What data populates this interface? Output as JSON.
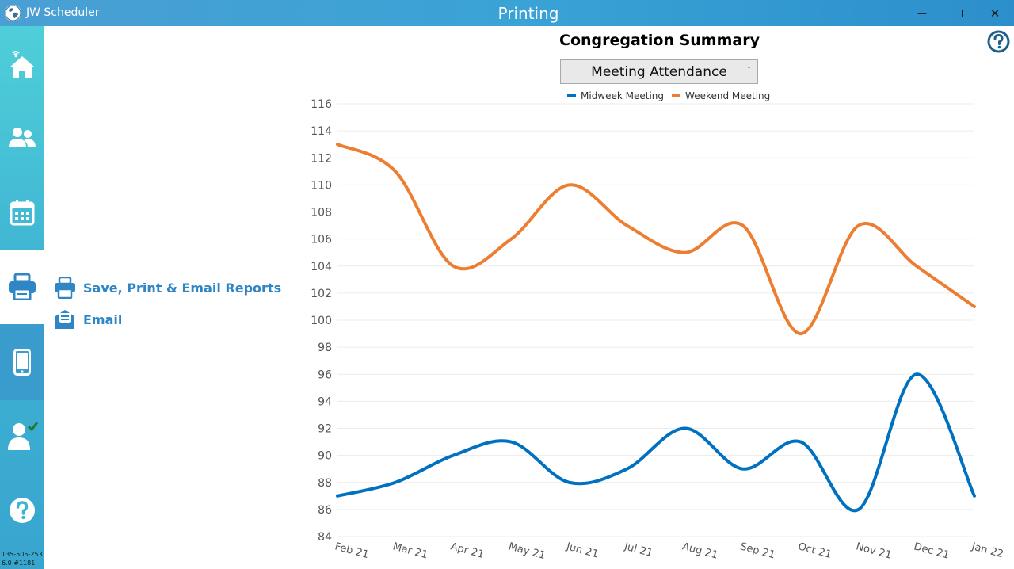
{
  "window": {
    "app_name": "JW Scheduler",
    "title": "Printing",
    "min_glyph": "—",
    "max_glyph": "☐",
    "close_glyph": "✕"
  },
  "sidebar": {
    "items": [
      {
        "name": "home",
        "icon": "home-wifi-icon"
      },
      {
        "name": "people",
        "icon": "people-icon"
      },
      {
        "name": "calendar",
        "icon": "calendar-icon"
      },
      {
        "name": "printing",
        "icon": "printer-icon",
        "active": true
      },
      {
        "name": "mobile",
        "icon": "phone-icon"
      },
      {
        "name": "user-check",
        "icon": "user-check-icon"
      },
      {
        "name": "help",
        "icon": "help-icon"
      }
    ],
    "version_line1": "135-505-253",
    "version_line2": "6.0 #1181"
  },
  "submenu": {
    "save_print_label": "Save, Print & Email Reports",
    "email_label": "Email"
  },
  "report": {
    "title": "Congregation Summary",
    "dropdown_value": "Meeting Attendance"
  },
  "colors": {
    "midweek": "#0070c0",
    "weekend": "#ed7d31",
    "accent": "#2f86c4"
  },
  "chart_data": {
    "type": "line",
    "categories": [
      "Feb 21",
      "Mar 21",
      "Apr 21",
      "May 21",
      "Jun 21",
      "Jul 21",
      "Aug 21",
      "Sep 21",
      "Oct 21",
      "Nov 21",
      "Dec 21",
      "Jan 22"
    ],
    "series": [
      {
        "name": "Midweek Meeting",
        "values": [
          87,
          88,
          90,
          91,
          88,
          89,
          92,
          89,
          91,
          86,
          96,
          87
        ]
      },
      {
        "name": "Weekend Meeting",
        "values": [
          113,
          111,
          104,
          106,
          110,
          107,
          105,
          107,
          99,
          107,
          104,
          101
        ]
      }
    ],
    "ylim": [
      84,
      116
    ],
    "yticks": [
      84,
      86,
      88,
      90,
      92,
      94,
      96,
      98,
      100,
      102,
      104,
      106,
      108,
      110,
      112,
      114,
      116
    ],
    "grid": true,
    "legend": "top-center",
    "smooth": true
  }
}
